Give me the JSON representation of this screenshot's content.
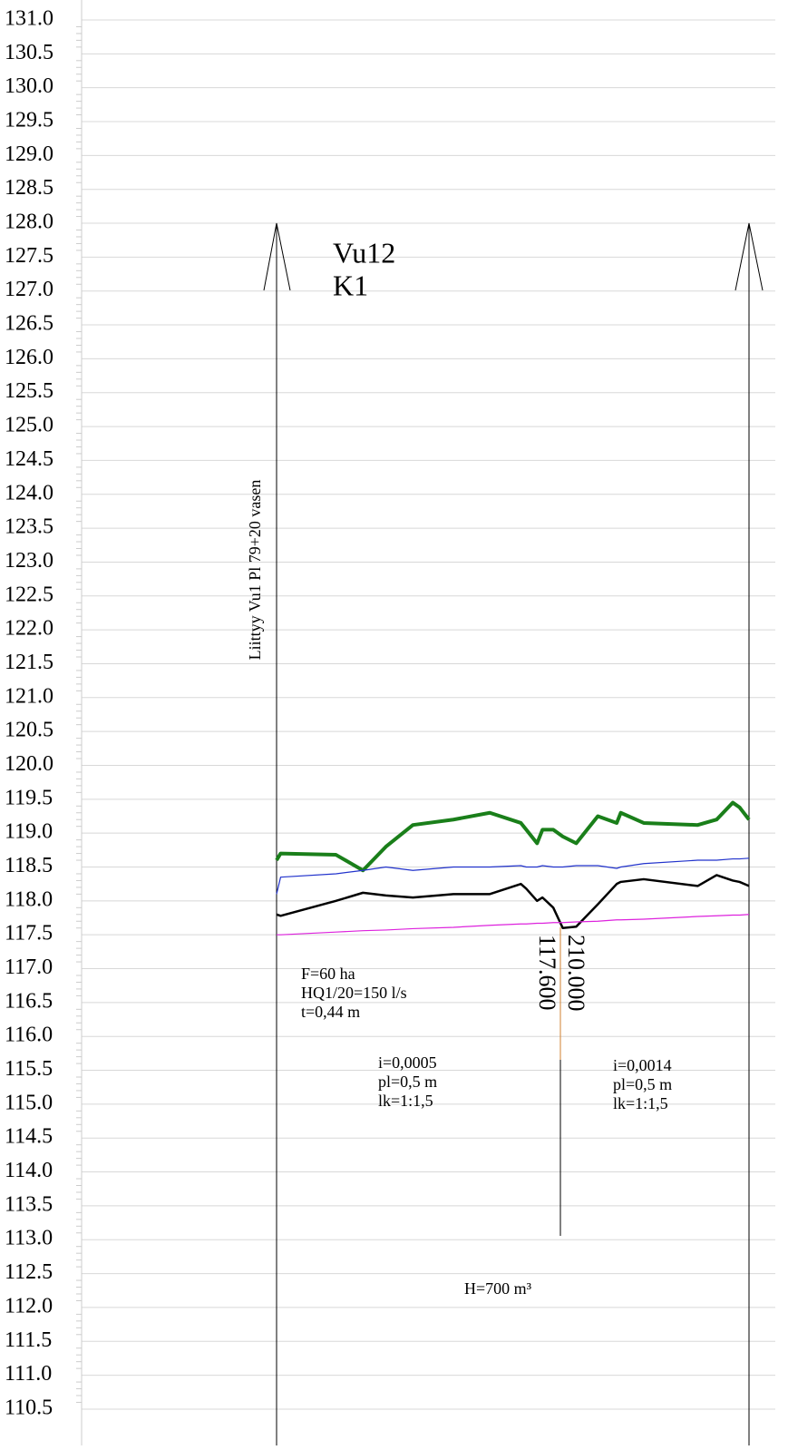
{
  "chart_data": {
    "type": "line",
    "ylim": [
      110.2,
      131.3
    ],
    "yticks": [
      {
        "value": 131,
        "label": "131.0"
      },
      {
        "value": 130.5,
        "label": "130.5"
      },
      {
        "value": 130,
        "label": "130.0"
      },
      {
        "value": 129.5,
        "label": "129.5"
      },
      {
        "value": 129,
        "label": "129.0"
      },
      {
        "value": 128.5,
        "label": "128.5"
      },
      {
        "value": 128,
        "label": "128.0"
      },
      {
        "value": 127.5,
        "label": "127.5"
      },
      {
        "value": 127,
        "label": "127.0"
      },
      {
        "value": 126.5,
        "label": "126.5"
      },
      {
        "value": 126,
        "label": "126.0"
      },
      {
        "value": 125.5,
        "label": "125.5"
      },
      {
        "value": 125,
        "label": "125.0"
      },
      {
        "value": 124.5,
        "label": "124.5"
      },
      {
        "value": 124,
        "label": "124.0"
      },
      {
        "value": 123.5,
        "label": "123.5"
      },
      {
        "value": 123,
        "label": "123.0"
      },
      {
        "value": 122.5,
        "label": "122.5"
      },
      {
        "value": 122,
        "label": "122.0"
      },
      {
        "value": 121.5,
        "label": "121.5"
      },
      {
        "value": 121,
        "label": "121.0"
      },
      {
        "value": 120.5,
        "label": "120.5"
      },
      {
        "value": 120,
        "label": "120.0"
      },
      {
        "value": 119.5,
        "label": "119.5"
      },
      {
        "value": 119,
        "label": "119.0"
      },
      {
        "value": 118.5,
        "label": "118.5"
      },
      {
        "value": 118,
        "label": "118.0"
      },
      {
        "value": 117.5,
        "label": "117.5"
      },
      {
        "value": 117,
        "label": "117.0"
      },
      {
        "value": 116.5,
        "label": "116.5"
      },
      {
        "value": 116,
        "label": "116.0"
      },
      {
        "value": 115.5,
        "label": "115.5"
      },
      {
        "value": 115,
        "label": "115.0"
      },
      {
        "value": 114.5,
        "label": "114.5"
      },
      {
        "value": 114,
        "label": "114.0"
      },
      {
        "value": 113.5,
        "label": "113.5"
      },
      {
        "value": 113,
        "label": "113.0"
      },
      {
        "value": 112.5,
        "label": "112.5"
      },
      {
        "value": 112,
        "label": "112.0"
      },
      {
        "value": 111.5,
        "label": "111.5"
      },
      {
        "value": 111,
        "label": "111.0"
      },
      {
        "value": 110.5,
        "label": "110.5"
      }
    ],
    "grid": true,
    "xlim": [
      0,
      350
    ],
    "x": [
      0,
      3,
      44,
      64,
      81,
      101,
      131,
      158,
      181,
      185,
      193,
      197,
      205,
      212,
      222,
      238,
      252,
      255,
      272,
      312,
      326,
      338,
      343,
      350
    ],
    "series": [
      {
        "color": "#1a7f1a",
        "width": 4,
        "values": [
          118.6,
          118.7,
          118.68,
          118.45,
          118.8,
          119.12,
          119.2,
          119.3,
          119.15,
          119.05,
          118.85,
          119.05,
          119.05,
          118.95,
          118.85,
          119.25,
          119.15,
          119.3,
          119.15,
          119.12,
          119.2,
          119.45,
          119.38,
          119.2
        ]
      },
      {
        "color": "#2233cc",
        "width": 1.2,
        "values": [
          118.1,
          118.35,
          118.4,
          118.45,
          118.5,
          118.45,
          118.5,
          118.5,
          118.52,
          118.5,
          118.5,
          118.52,
          118.5,
          118.5,
          118.52,
          118.52,
          118.48,
          118.5,
          118.55,
          118.6,
          118.6,
          118.62,
          118.62,
          118.63
        ]
      },
      {
        "color": "#000000",
        "width": 2.5,
        "values": [
          117.8,
          117.78,
          118.0,
          118.12,
          118.08,
          118.05,
          118.1,
          118.1,
          118.25,
          118.18,
          118.0,
          118.05,
          117.9,
          117.6,
          117.62,
          117.95,
          118.25,
          118.28,
          118.32,
          118.22,
          118.38,
          118.3,
          118.28,
          118.22
        ]
      },
      {
        "color": "#dd22dd",
        "width": 1.2,
        "values": [
          117.5,
          117.5,
          117.54,
          117.56,
          117.57,
          117.59,
          117.61,
          117.64,
          117.66,
          117.66,
          117.67,
          117.67,
          117.68,
          117.68,
          117.69,
          117.7,
          117.72,
          117.72,
          117.73,
          117.77,
          117.78,
          117.79,
          117.79,
          117.8
        ]
      }
    ],
    "annotations": {
      "name": "Vu12",
      "code": "K1",
      "connection": "Liittyy Vu1 Pl 79+20 vasen",
      "catchment": [
        "F=60 ha",
        "HQ1/20=150 l/s",
        "t=0,44 m"
      ],
      "section1": [
        "i=0,0005",
        "pl=0,5 m",
        "lk=1:1,5"
      ],
      "section2": [
        "i=0,0014",
        "pl=0,5 m",
        "lk=1:1,5"
      ],
      "station_level": "117.600",
      "station": "210.000",
      "volume": "H=700 m³"
    }
  }
}
